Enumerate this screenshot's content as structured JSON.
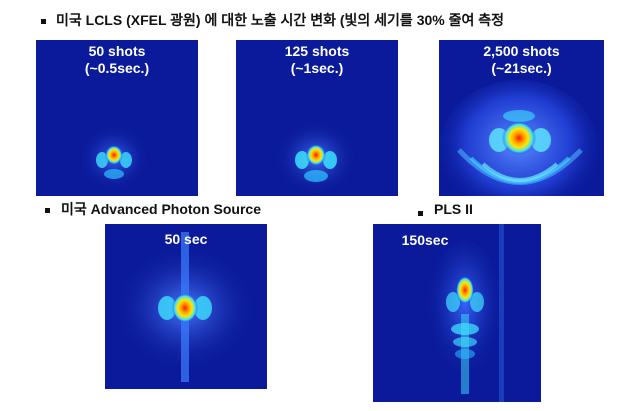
{
  "headings": {
    "lcls": "미국 LCLS  (XFEL 광원) 에 대한 노출 시간 변화 (빛의 세기를  30% 줄여 측정",
    "aps": "미국 Advanced Photon Source",
    "pls": "PLS II"
  },
  "panels": {
    "lcls_50": {
      "line1": "50 shots",
      "line2": "(~0.5sec.)"
    },
    "lcls_125": {
      "line1": "125 shots",
      "line2": "(~1sec.)"
    },
    "lcls_2500": {
      "line1": "2,500 shots",
      "line2": "(~21sec.)"
    },
    "aps": {
      "line1": "50 sec"
    },
    "pls": {
      "line1": "150sec"
    }
  },
  "colors": {
    "background": "#0a1a9a",
    "speckle": "#2a4cff",
    "core_red": "#ff1a00",
    "core_yellow": "#ffe600",
    "core_cyan": "#3de0ff"
  }
}
